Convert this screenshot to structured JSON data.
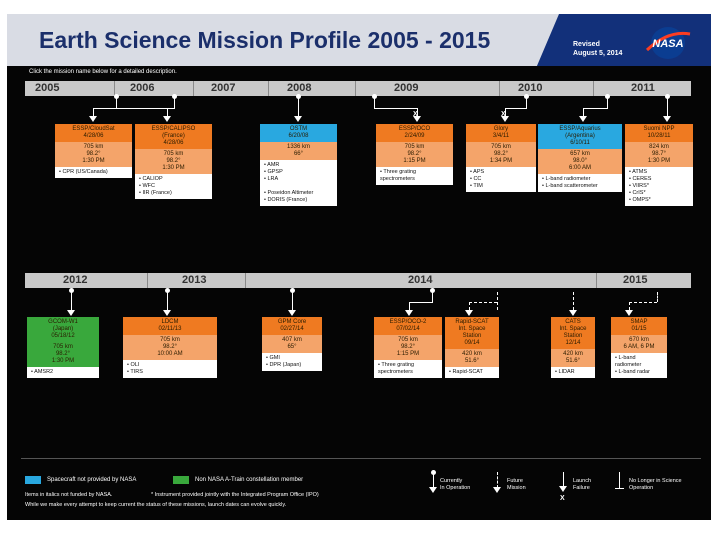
{
  "header": {
    "title": "Earth Science Mission Profile 2005 - 2015",
    "revised_line1": "Revised",
    "revised_line2": "August 5, 2014",
    "logo_text": "NASA"
  },
  "instructions": "Click the mission name below for a detailed description.",
  "timeline_top": {
    "years": [
      "2005",
      "2006",
      "2007",
      "2008",
      "2009",
      "2010",
      "2011"
    ]
  },
  "timeline_bottom": {
    "years": [
      "2012",
      "2013",
      "2014",
      "2015"
    ]
  },
  "missions_top": [
    {
      "name": "ESSP/CloudSat\n4/28/06",
      "orbit": "705 km\n98.2°\n1:30 PM",
      "instruments": "• CPR (US/Canada)",
      "color": "orange"
    },
    {
      "name": "ESSP/CALIPSO\n(France)\n4/28/06",
      "orbit": "705 km\n98.2°\n1:30 PM",
      "instruments": "• CALIOP\n• WFC\n• IIR (France)",
      "color": "orange"
    },
    {
      "name": "OSTM\n6/20/08",
      "orbit": "1336 km\n66°",
      "instruments": "• AMR\n• GPSP\n• LRA\n\n• Poseidon Altimeter\n• DORIS (France)",
      "color": "blue"
    },
    {
      "name": "ESSP/OCO\n2/24/09",
      "orbit": "705 km\n98.2°\n1:15 PM",
      "instruments": "• Three grating\nspectrometers",
      "color": "orange"
    },
    {
      "name": "Glory\n3/4/11",
      "orbit": "705 km\n98.2°\n1:34 PM",
      "instruments": "• APS\n• CC\n• TIM",
      "color": "orange"
    },
    {
      "name": "ESSP/Aquarius\n(Argentina)\n6/10/11",
      "orbit": "657 km\n98.0°\n6:00 AM",
      "instruments": "• L-band radiometer\n• L-band scatterometer",
      "color": "blue"
    },
    {
      "name": "Suomi NPP\n10/28/11",
      "orbit": "824 km\n98.7°\n1:30 PM",
      "instruments": "• ATMS\n• CERES\n• VIIRS*\n• CrIS*\n• OMPS*",
      "color": "orange"
    }
  ],
  "missions_bottom": [
    {
      "name": "GCOM-W1\n(Japan)\n05/18/12",
      "orbit": "705 km\n98.2°\n1:30 PM",
      "instruments": "• AMSR2",
      "color": "green"
    },
    {
      "name": "LDCM\n02/11/13",
      "orbit": "705 km\n98.2°\n10:00 AM",
      "instruments": "• OLI\n• TIRS",
      "color": "orange"
    },
    {
      "name": "GPM Core\n02/27/14",
      "orbit": "407 km\n65°",
      "instruments": "• GMI\n• DPR (Japan)",
      "color": "orange"
    },
    {
      "name": "ESSP/OCO-2\n07/02/14",
      "orbit": "705 km\n98.2°\n1:15 PM",
      "instruments": "• Three grating\nspectrometers",
      "color": "orange"
    },
    {
      "name": "Rapid-SCAT\nInt. Space\nStation\n09/14",
      "orbit": "420 km\n51.6°",
      "instruments": "• Rapid-SCAT",
      "color": "orange"
    },
    {
      "name": "CATS\nInt. Space\nStation\n12/14",
      "orbit": "420 km\n51.6°",
      "instruments": "• LIDAR",
      "color": "orange"
    },
    {
      "name": "SMAP\n01/15",
      "orbit": "670 km\n6 AM, 6 PM",
      "instruments": "• L-band\nradiometer\n• L-band radar",
      "color": "orange"
    }
  ],
  "legend": {
    "blue_label": "Spacecraft not provided by NASA",
    "green_label": "Non NASA A-Train constellation member",
    "symbols": [
      "Currently\nIn Operation",
      "Future\nMission",
      "Launch\nFailure",
      "No Longer in Science\nOperation"
    ]
  },
  "footnotes": {
    "line1a": "Items in italics not funded by NASA.",
    "line1b": "* Instrument provided jointly with the Integrated Program Office (IPO)",
    "line2": "While we make every attempt to keep current the status of these missions, launch dates can evolve quickly."
  },
  "colors": {
    "orange": "#ef7a21",
    "blue": "#29a8e0",
    "green": "#39a83c",
    "header_bg": "#d9dce4",
    "title": "#1b2f6b"
  }
}
